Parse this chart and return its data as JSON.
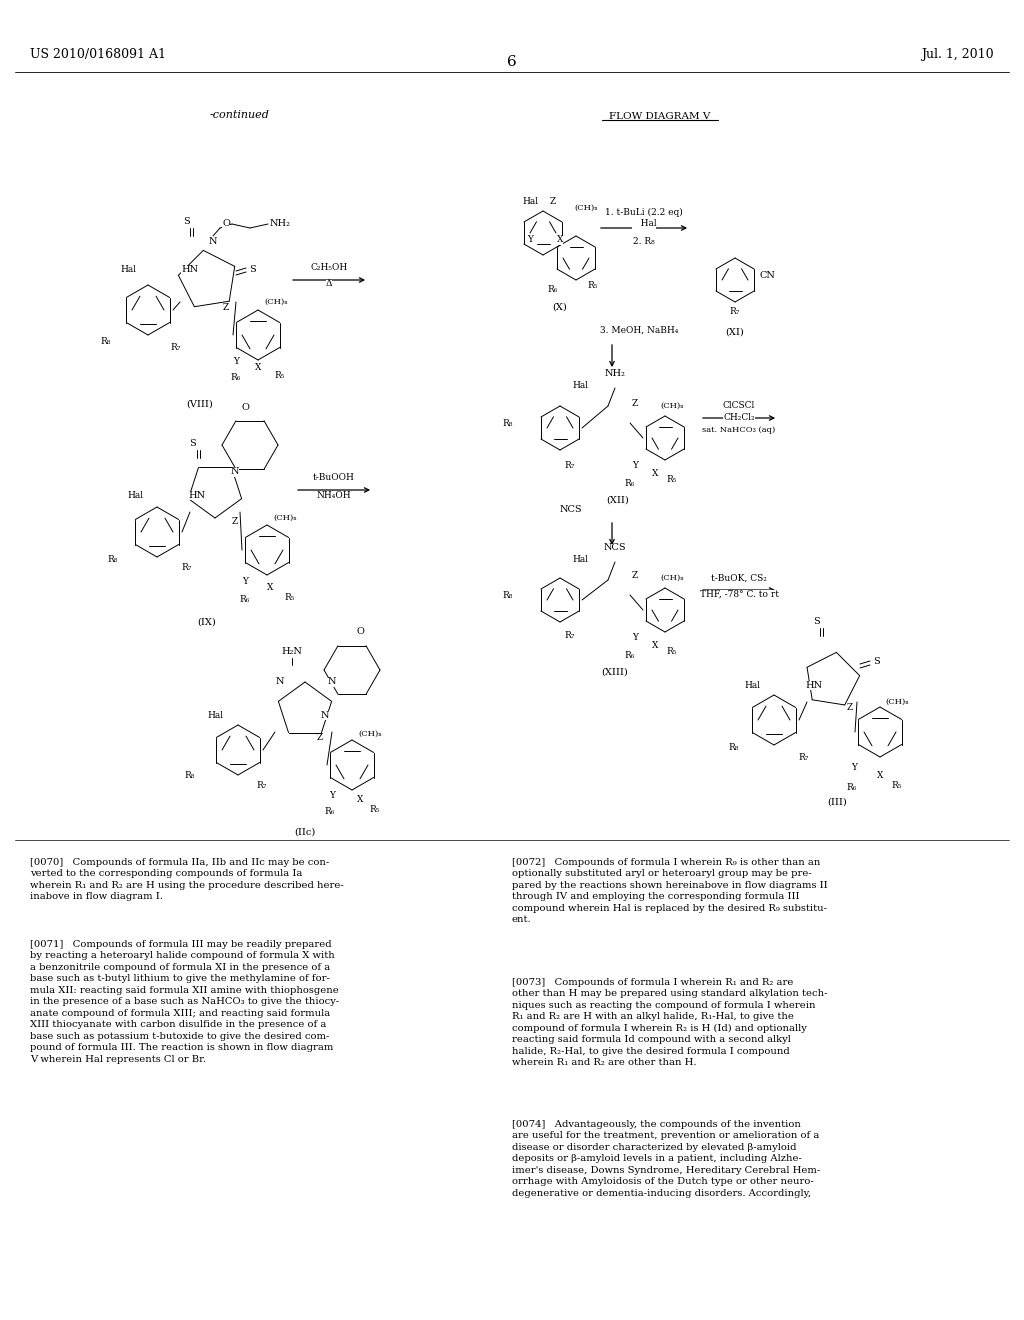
{
  "figsize": [
    10.24,
    13.2
  ],
  "dpi": 100,
  "left_header": "US 2010/0168091 A1",
  "right_header": "Jul. 1, 2010",
  "page_number": "6",
  "background": "#ffffff"
}
